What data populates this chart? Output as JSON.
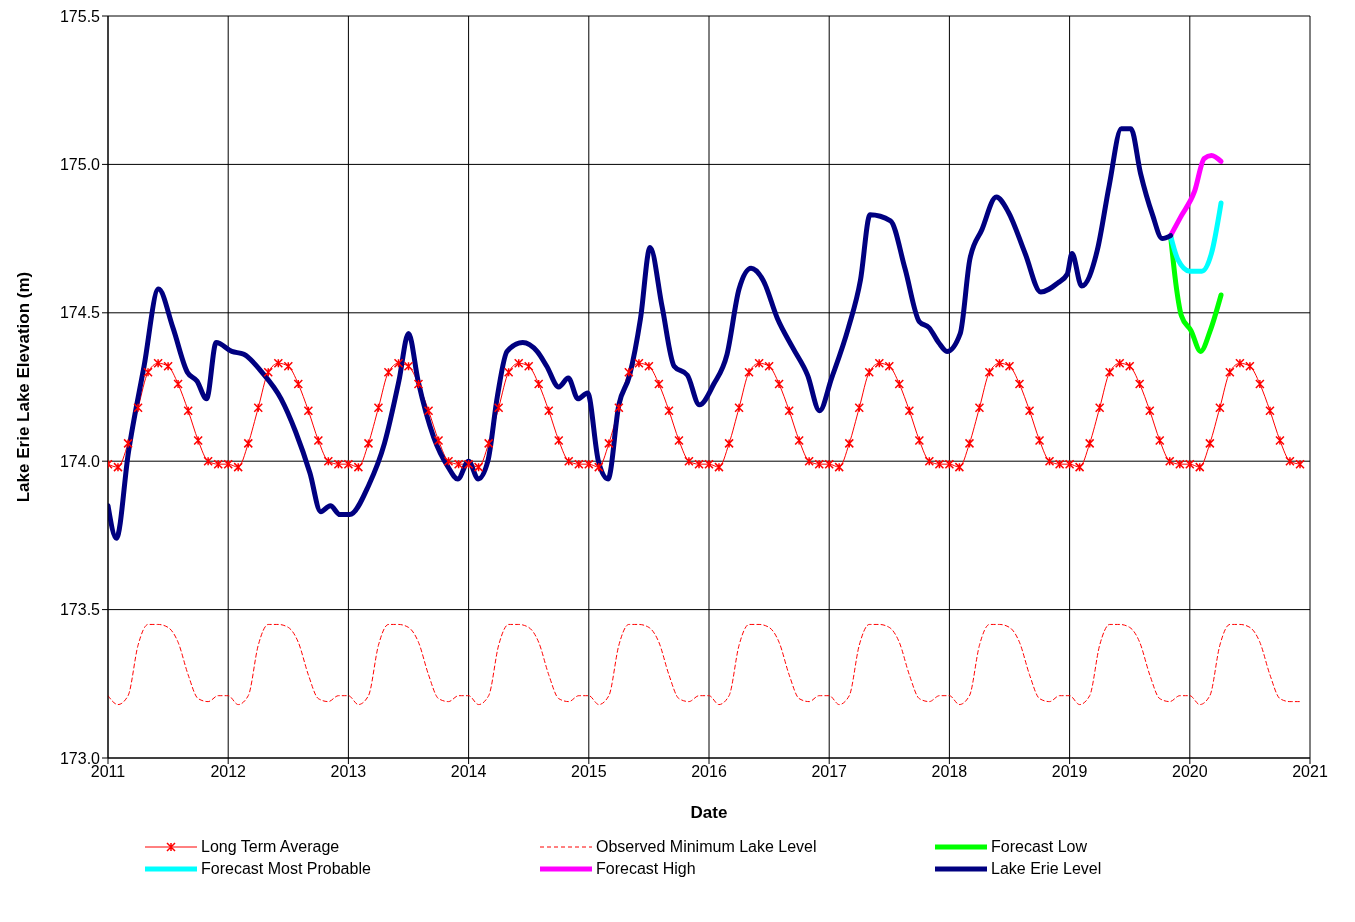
{
  "chart_data": {
    "type": "line",
    "xlabel": "Date",
    "ylabel": "Lake Erie Lake Elevation (m)",
    "xlim": [
      2011,
      2021
    ],
    "xticks": [
      2011,
      2012,
      2013,
      2014,
      2015,
      2016,
      2017,
      2018,
      2019,
      2020,
      2021
    ],
    "ylim": [
      173,
      175.5
    ],
    "yticks": [
      {
        "value": 173,
        "label": "173.0"
      },
      173.5,
      {
        "value": 174,
        "label": "174.0"
      },
      174.5,
      {
        "value": 175,
        "label": "175.0"
      },
      175.5
    ],
    "grid": true,
    "legend": "bottom",
    "marker": "none",
    "series": [
      {
        "name": "Long Term Average",
        "color": "#ff0000",
        "marker": "cross",
        "x": [
          2011,
          2011.083,
          2011.167,
          2011.25,
          2011.333,
          2011.417,
          2011.5,
          2011.583,
          2011.667,
          2011.75,
          2011.833,
          2011.917,
          2012,
          2012.083,
          2012.167,
          2012.25,
          2012.333,
          2012.417,
          2012.5,
          2012.583,
          2012.667,
          2012.75,
          2012.833,
          2012.917,
          2013,
          2013.083,
          2013.167,
          2013.25,
          2013.333,
          2013.417,
          2013.5,
          2013.583,
          2013.667,
          2013.75,
          2013.833,
          2013.917,
          2014,
          2014.083,
          2014.167,
          2014.25,
          2014.333,
          2014.417,
          2014.5,
          2014.583,
          2014.667,
          2014.75,
          2014.833,
          2014.917,
          2015,
          2015.083,
          2015.167,
          2015.25,
          2015.333,
          2015.417,
          2015.5,
          2015.583,
          2015.667,
          2015.75,
          2015.833,
          2015.917,
          2016,
          2016.083,
          2016.167,
          2016.25,
          2016.333,
          2016.417,
          2016.5,
          2016.583,
          2016.667,
          2016.75,
          2016.833,
          2016.917,
          2017,
          2017.083,
          2017.167,
          2017.25,
          2017.333,
          2017.417,
          2017.5,
          2017.583,
          2017.667,
          2017.75,
          2017.833,
          2017.917,
          2018,
          2018.083,
          2018.167,
          2018.25,
          2018.333,
          2018.417,
          2018.5,
          2018.583,
          2018.667,
          2018.75,
          2018.833,
          2018.917,
          2019,
          2019.083,
          2019.167,
          2019.25,
          2019.333,
          2019.417,
          2019.5,
          2019.583,
          2019.667,
          2019.75,
          2019.833,
          2019.917,
          2020,
          2020.083,
          2020.167,
          2020.25,
          2020.333,
          2020.417,
          2020.5,
          2020.583,
          2020.667,
          2020.75,
          2020.833,
          2020.917
        ],
        "values": [
          173.99,
          173.98,
          174.06,
          174.18,
          174.3,
          174.33,
          174.32,
          174.26,
          174.17,
          174.07,
          174.0,
          173.99,
          173.99,
          173.98,
          174.06,
          174.18,
          174.3,
          174.33,
          174.32,
          174.26,
          174.17,
          174.07,
          174.0,
          173.99,
          173.99,
          173.98,
          174.06,
          174.18,
          174.3,
          174.33,
          174.32,
          174.26,
          174.17,
          174.07,
          174.0,
          173.99,
          173.99,
          173.98,
          174.06,
          174.18,
          174.3,
          174.33,
          174.32,
          174.26,
          174.17,
          174.07,
          174.0,
          173.99,
          173.99,
          173.98,
          174.06,
          174.18,
          174.3,
          174.33,
          174.32,
          174.26,
          174.17,
          174.07,
          174.0,
          173.99,
          173.99,
          173.98,
          174.06,
          174.18,
          174.3,
          174.33,
          174.32,
          174.26,
          174.17,
          174.07,
          174.0,
          173.99,
          173.99,
          173.98,
          174.06,
          174.18,
          174.3,
          174.33,
          174.32,
          174.26,
          174.17,
          174.07,
          174.0,
          173.99,
          173.99,
          173.98,
          174.06,
          174.18,
          174.3,
          174.33,
          174.32,
          174.26,
          174.17,
          174.07,
          174.0,
          173.99,
          173.99,
          173.98,
          174.06,
          174.18,
          174.3,
          174.33,
          174.32,
          174.26,
          174.17,
          174.07,
          174.0,
          173.99,
          173.99,
          173.98,
          174.06,
          174.18,
          174.3,
          174.33,
          174.32,
          174.26,
          174.17,
          174.07,
          174.0,
          173.99
        ]
      },
      {
        "name": "Observed Minimum Lake Level",
        "color": "#ff0000",
        "line_style": "dashed",
        "x": [
          2011,
          2011.083,
          2011.167,
          2011.25,
          2011.333,
          2011.417,
          2011.5,
          2011.583,
          2011.667,
          2011.75,
          2011.833,
          2011.917,
          2012,
          2012.083,
          2012.167,
          2012.25,
          2012.333,
          2012.417,
          2012.5,
          2012.583,
          2012.667,
          2012.75,
          2012.833,
          2012.917,
          2013,
          2013.083,
          2013.167,
          2013.25,
          2013.333,
          2013.417,
          2013.5,
          2013.583,
          2013.667,
          2013.75,
          2013.833,
          2013.917,
          2014,
          2014.083,
          2014.167,
          2014.25,
          2014.333,
          2014.417,
          2014.5,
          2014.583,
          2014.667,
          2014.75,
          2014.833,
          2014.917,
          2015,
          2015.083,
          2015.167,
          2015.25,
          2015.333,
          2015.417,
          2015.5,
          2015.583,
          2015.667,
          2015.75,
          2015.833,
          2015.917,
          2016,
          2016.083,
          2016.167,
          2016.25,
          2016.333,
          2016.417,
          2016.5,
          2016.583,
          2016.667,
          2016.75,
          2016.833,
          2016.917,
          2017,
          2017.083,
          2017.167,
          2017.25,
          2017.333,
          2017.417,
          2017.5,
          2017.583,
          2017.667,
          2017.75,
          2017.833,
          2017.917,
          2018,
          2018.083,
          2018.167,
          2018.25,
          2018.333,
          2018.417,
          2018.5,
          2018.583,
          2018.667,
          2018.75,
          2018.833,
          2018.917,
          2019,
          2019.083,
          2019.167,
          2019.25,
          2019.333,
          2019.417,
          2019.5,
          2019.583,
          2019.667,
          2019.75,
          2019.833,
          2019.917,
          2020,
          2020.083,
          2020.167,
          2020.25,
          2020.333,
          2020.417,
          2020.5,
          2020.583,
          2020.667,
          2020.75,
          2020.833,
          2020.917
        ],
        "values": [
          173.21,
          173.18,
          173.21,
          173.38,
          173.45,
          173.45,
          173.44,
          173.39,
          173.28,
          173.2,
          173.19,
          173.21,
          173.21,
          173.18,
          173.21,
          173.38,
          173.45,
          173.45,
          173.44,
          173.39,
          173.28,
          173.2,
          173.19,
          173.21,
          173.21,
          173.18,
          173.21,
          173.38,
          173.45,
          173.45,
          173.44,
          173.39,
          173.28,
          173.2,
          173.19,
          173.21,
          173.21,
          173.18,
          173.21,
          173.38,
          173.45,
          173.45,
          173.44,
          173.39,
          173.28,
          173.2,
          173.19,
          173.21,
          173.21,
          173.18,
          173.21,
          173.38,
          173.45,
          173.45,
          173.44,
          173.39,
          173.28,
          173.2,
          173.19,
          173.21,
          173.21,
          173.18,
          173.21,
          173.38,
          173.45,
          173.45,
          173.44,
          173.39,
          173.28,
          173.2,
          173.19,
          173.21,
          173.21,
          173.18,
          173.21,
          173.38,
          173.45,
          173.45,
          173.44,
          173.39,
          173.28,
          173.2,
          173.19,
          173.21,
          173.21,
          173.18,
          173.21,
          173.38,
          173.45,
          173.45,
          173.44,
          173.39,
          173.28,
          173.2,
          173.19,
          173.21,
          173.21,
          173.18,
          173.21,
          173.38,
          173.45,
          173.45,
          173.44,
          173.39,
          173.28,
          173.2,
          173.19,
          173.21,
          173.21,
          173.18,
          173.21,
          173.38,
          173.45,
          173.45,
          173.44,
          173.39,
          173.28,
          173.2,
          173.19,
          173.19
        ]
      },
      {
        "name": "Forecast Low",
        "color": "#00ff00",
        "x": [
          2019.84,
          2019.89,
          2019.93,
          2020.01,
          2020.09,
          2020.17,
          2020.26
        ],
        "values": [
          174.76,
          174.58,
          174.49,
          174.44,
          174.37,
          174.44,
          174.56
        ]
      },
      {
        "name": "Forecast Most Probable",
        "color": "#00ffff",
        "x": [
          2019.84,
          2019.9,
          2020.0,
          2020.1,
          2020.18,
          2020.26
        ],
        "values": [
          174.76,
          174.68,
          174.64,
          174.64,
          174.7,
          174.87
        ]
      },
      {
        "name": "Forecast High",
        "color": "#ff00ff",
        "x": [
          2019.84,
          2019.92,
          2020.04,
          2020.12,
          2020.18,
          2020.26
        ],
        "values": [
          174.76,
          174.82,
          174.91,
          175.02,
          175.03,
          175.01
        ]
      },
      {
        "name": "Lake Erie Level",
        "color": "#000080",
        "x": [
          2011.0,
          2011.07,
          2011.17,
          2011.3,
          2011.42,
          2011.54,
          2011.66,
          2011.74,
          2011.82,
          2011.9,
          2012.03,
          2012.13,
          2012.28,
          2012.44,
          2012.56,
          2012.68,
          2012.77,
          2012.85,
          2012.93,
          2013.01,
          2013.17,
          2013.3,
          2013.42,
          2013.5,
          2013.58,
          2013.71,
          2013.83,
          2013.91,
          2014.0,
          2014.08,
          2014.16,
          2014.24,
          2014.32,
          2014.45,
          2014.57,
          2014.65,
          2014.75,
          2014.83,
          2014.91,
          2014.99,
          2015.08,
          2015.16,
          2015.25,
          2015.34,
          2015.43,
          2015.51,
          2015.61,
          2015.71,
          2015.82,
          2015.92,
          2016.04,
          2016.15,
          2016.25,
          2016.35,
          2016.45,
          2016.57,
          2016.7,
          2016.82,
          2016.92,
          2017.02,
          2017.16,
          2017.26,
          2017.34,
          2017.51,
          2017.63,
          2017.75,
          2017.83,
          2017.91,
          2017.98,
          2018.09,
          2018.17,
          2018.27,
          2018.39,
          2018.49,
          2018.63,
          2018.76,
          2018.9,
          2018.98,
          2019.02,
          2019.1,
          2019.23,
          2019.33,
          2019.43,
          2019.51,
          2019.59,
          2019.69,
          2019.77,
          2019.84
        ],
        "values": [
          173.85,
          173.74,
          174.03,
          174.32,
          174.58,
          174.45,
          174.3,
          174.27,
          174.21,
          174.4,
          174.37,
          174.36,
          174.3,
          174.21,
          174.1,
          173.96,
          173.83,
          173.85,
          173.82,
          173.82,
          173.92,
          174.06,
          174.27,
          174.43,
          174.27,
          174.08,
          173.98,
          173.94,
          174.0,
          173.94,
          174.0,
          174.22,
          174.37,
          174.4,
          174.37,
          174.32,
          174.25,
          174.28,
          174.21,
          174.23,
          174.0,
          173.94,
          174.19,
          174.29,
          174.48,
          174.72,
          174.52,
          174.32,
          174.29,
          174.19,
          174.26,
          174.36,
          174.58,
          174.65,
          174.61,
          174.48,
          174.38,
          174.29,
          174.17,
          174.28,
          174.45,
          174.61,
          174.83,
          174.81,
          174.65,
          174.47,
          174.45,
          174.4,
          174.37,
          174.43,
          174.68,
          174.78,
          174.89,
          174.84,
          174.7,
          174.57,
          174.6,
          174.63,
          174.7,
          174.59,
          174.71,
          174.93,
          175.12,
          175.12,
          174.97,
          174.83,
          174.75,
          174.76
        ]
      }
    ]
  }
}
